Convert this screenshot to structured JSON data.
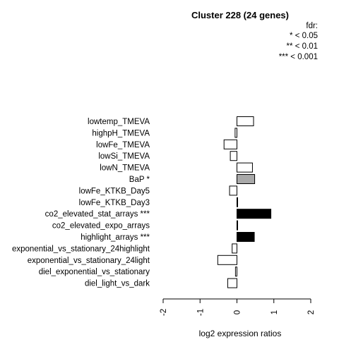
{
  "chart_data": {
    "type": "bar",
    "orientation": "horizontal",
    "title": "Cluster 228 (24 genes)",
    "xlabel": "log2 expression ratios",
    "ylabel": "",
    "xlim": [
      -2,
      2
    ],
    "xticks": [
      "-2",
      "-1",
      "0",
      "1",
      "2"
    ],
    "legend": {
      "title": "fdr:",
      "entries": [
        "* < 0.05",
        "** < 0.01",
        "*** < 0.001"
      ],
      "placement": "top-right"
    },
    "categories": [
      "lowtemp_TMEVA",
      "highpH_TMEVA",
      "lowFe_TMEVA",
      "lowSi_TMEVA",
      "lowN_TMEVA",
      "BaP *",
      "lowFe_KTKB_Day5",
      "lowFe_KTKB_Day3",
      "co2_elevated_stat_arrays ***",
      "co2_elevated_expo_arrays",
      "highlight_arrays ***",
      "exponential_vs_stationary_24highlight",
      "exponential_vs_stationary_24light",
      "diel_exponential_vs_stationary",
      "diel_light_vs_dark"
    ],
    "values": [
      0.45,
      -0.05,
      -0.35,
      -0.18,
      0.42,
      0.48,
      -0.2,
      0.01,
      0.92,
      0.01,
      0.47,
      -0.13,
      -0.52,
      -0.04,
      -0.25
    ],
    "significance": [
      "",
      "",
      "",
      "",
      "",
      "*",
      "",
      "",
      "***",
      "",
      "***",
      "",
      "",
      "",
      ""
    ],
    "colors": {
      "none": "#ffffff",
      "*": "#a9a9a9",
      "***": "#000000",
      "stroke": "#000000"
    }
  }
}
